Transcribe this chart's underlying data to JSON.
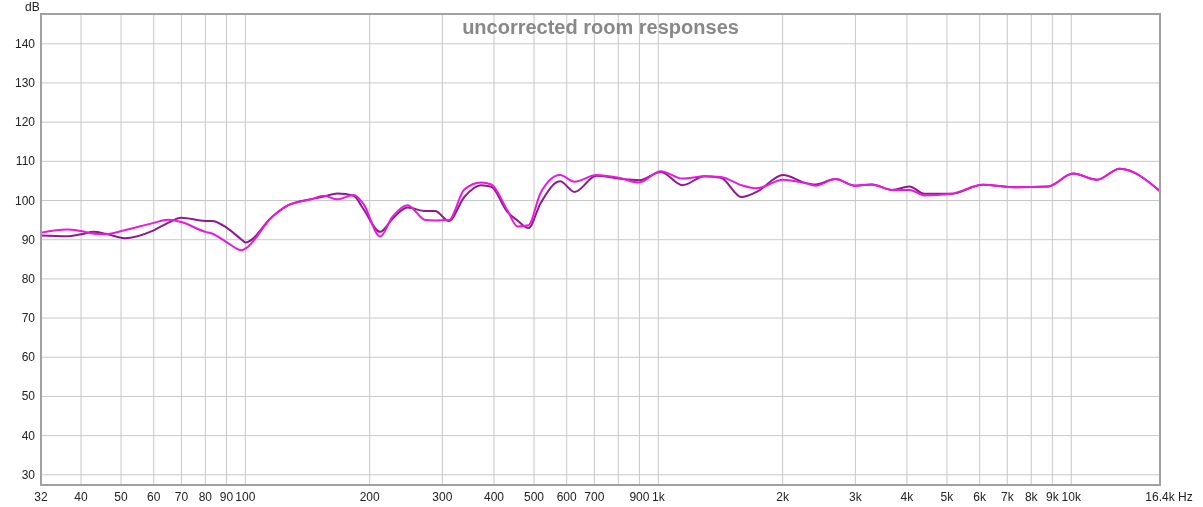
{
  "chart_data": {
    "type": "line",
    "title": "uncorrected room responses",
    "xlabel": "Hz",
    "ylabel": "dB",
    "log": "x",
    "x": [
      32,
      37,
      40,
      43,
      46,
      51,
      60,
      65,
      70,
      80,
      83,
      90,
      98,
      100,
      116,
      127,
      144,
      155,
      167,
      183,
      193,
      212,
      227,
      247,
      273,
      288,
      311,
      339,
      372,
      394,
      431,
      456,
      485,
      518,
      578,
      627,
      708,
      802,
      899,
      1014,
      1144,
      1294,
      1417,
      1590,
      1730,
      2005,
      2270,
      2404,
      2683,
      2996,
      3290,
      3677,
      4058,
      4411,
      5117,
      6105,
      7310,
      8790,
      10100,
      11540,
      13100,
      16400
    ],
    "series": [
      {
        "color": "#8e1a8e",
        "values": [
          91.1,
          90.9,
          91.4,
          92.0,
          91.5,
          90.4,
          92.4,
          94.3,
          95.6,
          94.8,
          94.8,
          93.1,
          90.0,
          89.3,
          95.8,
          98.8,
          100.3,
          101.0,
          101.8,
          101.2,
          97.9,
          92.0,
          95.3,
          98.2,
          97.3,
          97.3,
          94.8,
          100.9,
          103.9,
          103.5,
          97.1,
          94.9,
          93.0,
          99.2,
          104.9,
          102.2,
          106.3,
          105.6,
          105.2,
          107.3,
          103.9,
          106.2,
          105.8,
          100.9,
          102.2,
          106.5,
          104.5,
          104.1,
          105.5,
          103.8,
          104.1,
          102.7,
          103.6,
          101.7,
          101.7,
          104.0,
          103.4,
          103.6,
          106.9,
          105.3,
          108.1,
          102.4
        ]
      },
      {
        "color": "#e81ade",
        "values": [
          91.8,
          92.6,
          92.2,
          91.5,
          91.4,
          92.4,
          94.3,
          95.1,
          94.5,
          92.0,
          91.6,
          89.4,
          87.3,
          87.7,
          95.8,
          98.8,
          100.3,
          101.2,
          100.3,
          101.4,
          99.2,
          90.8,
          95.8,
          98.8,
          95.0,
          94.9,
          95.0,
          102.8,
          104.6,
          104.1,
          97.5,
          93.4,
          93.7,
          101.8,
          106.5,
          104.8,
          106.5,
          105.8,
          104.6,
          107.5,
          105.6,
          106.2,
          106.0,
          103.9,
          103.1,
          105.3,
          104.4,
          103.8,
          105.5,
          103.8,
          104.1,
          102.7,
          102.7,
          101.3,
          101.7,
          104.0,
          103.4,
          103.6,
          106.9,
          105.3,
          108.1,
          102.4
        ]
      }
    ],
    "xlim": [
      32,
      16400
    ],
    "xticks": [
      32,
      40,
      50,
      60,
      70,
      80,
      90,
      100,
      200,
      300,
      400,
      500,
      600,
      700,
      {
        "value": 800,
        "label": null
      },
      900,
      {
        "value": 1000,
        "label": "1k"
      },
      {
        "value": 2000,
        "label": "2k"
      },
      {
        "value": 3000,
        "label": "3k"
      },
      {
        "value": 4000,
        "label": "4k"
      },
      {
        "value": 5000,
        "label": "5k"
      },
      {
        "value": 6000,
        "label": "6k"
      },
      {
        "value": 7000,
        "label": "7k"
      },
      {
        "value": 8000,
        "label": "8k"
      },
      {
        "value": 9000,
        "label": "9k"
      },
      {
        "value": 10000,
        "label": "10k"
      },
      {
        "value": 16400,
        "label": "16.4k"
      }
    ],
    "ylim": [
      27.4,
      147.6
    ],
    "yticks": [
      30,
      40,
      50,
      60,
      70,
      80,
      90,
      100,
      110,
      120,
      130,
      140
    ],
    "grid": true
  }
}
